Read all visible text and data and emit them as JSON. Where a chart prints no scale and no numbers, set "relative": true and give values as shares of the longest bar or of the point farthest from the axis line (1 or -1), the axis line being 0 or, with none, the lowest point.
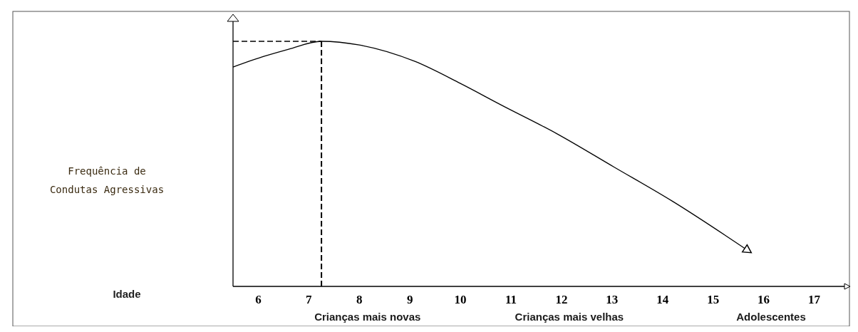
{
  "chart_data": {
    "type": "line",
    "relative": true,
    "x": [
      5.5,
      6.12,
      6.6,
      7.25,
      8,
      9.1,
      10,
      10.8,
      11.9,
      13.04,
      14.2,
      15.65
    ],
    "series": [
      {
        "color": "#000000",
        "values": [
          0.895,
          0.939,
          0.968,
          1,
          0.985,
          0.918,
          0.828,
          0.741,
          0.624,
          0.487,
          0.347,
          0.152
        ]
      }
    ],
    "xlim": [
      5.5,
      17.6
    ],
    "xticks": [
      6,
      7,
      8,
      9,
      10,
      11,
      12,
      13,
      14,
      15,
      16,
      17
    ],
    "ref_lines": [
      {
        "axis": "x",
        "value": 7.25,
        "line_style": "dashed",
        "color": "#000000"
      },
      {
        "axis": "y",
        "value": 1,
        "line_style": "dashed",
        "color": "#000000"
      }
    ],
    "annotations": [
      "Frequência de\nCondutas Agressivas",
      "Idade",
      "Crianças mais novas",
      "Crianças mais velhas",
      "Adolescentes"
    ],
    "grid": false,
    "marker": "none",
    "line_style": "solid"
  }
}
